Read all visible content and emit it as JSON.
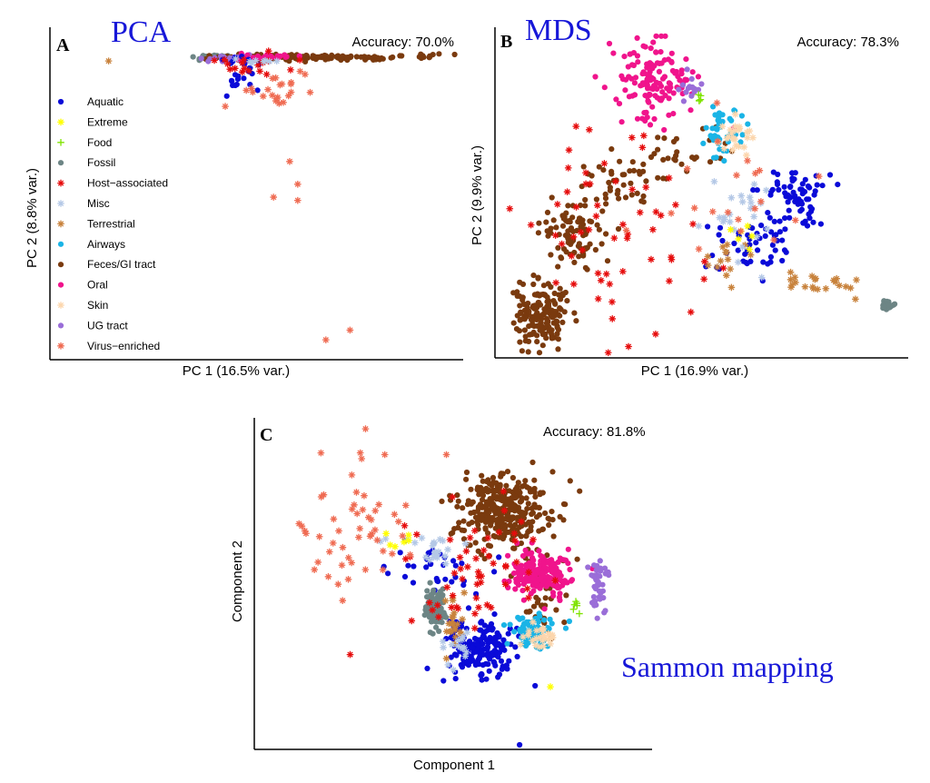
{
  "figure": {
    "category_colors": {
      "Aquatic": "#0a0ad8",
      "Extreme": "#ffff00",
      "Food": "#7fe300",
      "Fossil": "#6d8585",
      "Host-associated": "#e60c0c",
      "Misc": "#b4c8e6",
      "Terrestrial": "#c8823c",
      "Airways": "#1ab4e6",
      "Feces/GI tract": "#7a3a0e",
      "Oral": "#f0148c",
      "Skin": "#fcd6ad",
      "UG tract": "#9a6ed8",
      "Virus-enriched": "#ef6b52"
    },
    "title_color": "#1717d8"
  },
  "chart_data": [
    {
      "type": "scatter",
      "panel_letter": "A",
      "method_title": "PCA",
      "accuracy_text": "Accuracy: 70.0%",
      "xlabel": "PC 1 (16.5% var.)",
      "ylabel": "PC 2 (8.8% var.)",
      "xlim": [
        0,
        1
      ],
      "ylim": [
        0,
        1
      ],
      "legend": {
        "position": "left",
        "entries": [
          "Aquatic",
          "Extreme",
          "Food",
          "Fossil",
          "Host−associated",
          "Misc",
          "Terrestrial",
          "Airways",
          "Feces/GI tract",
          "Oral",
          "Skin",
          "UG tract",
          "Virus−enriched"
        ],
        "categories": [
          "Aquatic",
          "Extreme",
          "Food",
          "Fossil",
          "Host-associated",
          "Misc",
          "Terrestrial",
          "Airways",
          "Feces/GI tract",
          "Oral",
          "Skin",
          "UG tract",
          "Virus-enriched"
        ]
      },
      "series": [
        {
          "category": "Fossil",
          "clusters": [
            {
              "cx": 0.38,
              "cy": 0.92,
              "sx": 0.02,
              "sy": 0.004,
              "n": 30
            }
          ]
        },
        {
          "category": "Feces/GI tract",
          "clusters": [
            {
              "cx": 0.62,
              "cy": 0.92,
              "sx": 0.13,
              "sy": 0.005,
              "n": 120
            },
            {
              "cx": 0.92,
              "cy": 0.925,
              "sx": 0.02,
              "sy": 0.004,
              "n": 10
            }
          ],
          "points": [
            [
              0.99,
              0.93
            ]
          ]
        },
        {
          "category": "UG tract",
          "clusters": [
            {
              "cx": 0.43,
              "cy": 0.92,
              "sx": 0.03,
              "sy": 0.005,
              "n": 25
            }
          ]
        },
        {
          "category": "Oral",
          "clusters": [
            {
              "cx": 0.52,
              "cy": 0.92,
              "sx": 0.04,
              "sy": 0.005,
              "n": 30
            }
          ]
        },
        {
          "category": "Aquatic",
          "clusters": [
            {
              "cx": 0.46,
              "cy": 0.87,
              "sx": 0.03,
              "sy": 0.03,
              "n": 25
            }
          ]
        },
        {
          "category": "Host-associated",
          "clusters": [
            {
              "cx": 0.48,
              "cy": 0.9,
              "sx": 0.05,
              "sy": 0.02,
              "n": 18
            }
          ]
        },
        {
          "category": "Virus-enriched",
          "clusters": [
            {
              "cx": 0.56,
              "cy": 0.83,
              "sx": 0.05,
              "sy": 0.03,
              "n": 22
            }
          ],
          "points": [
            [
              0.42,
              0.77
            ],
            [
              0.58,
              0.6
            ],
            [
              0.6,
              0.53
            ],
            [
              0.54,
              0.49
            ],
            [
              0.6,
              0.48
            ],
            [
              0.67,
              0.05
            ],
            [
              0.73,
              0.08
            ]
          ]
        },
        {
          "category": "Terrestrial",
          "clusters": [],
          "points": [
            [
              0.13,
              0.91
            ]
          ]
        },
        {
          "category": "Misc",
          "clusters": [
            {
              "cx": 0.5,
              "cy": 0.91,
              "sx": 0.03,
              "sy": 0.006,
              "n": 8
            }
          ]
        }
      ]
    },
    {
      "type": "scatter",
      "panel_letter": "B",
      "method_title": "MDS",
      "accuracy_text": "Accuracy: 78.3%",
      "xlabel": "PC 1 (16.9% var.)",
      "ylabel": "PC 2 (9.9% var.)",
      "xlim": [
        0,
        1
      ],
      "ylim": [
        0,
        1
      ],
      "series": [
        {
          "category": "Feces/GI tract",
          "clusters": [
            {
              "cx": 0.1,
              "cy": 0.12,
              "sx": 0.03,
              "sy": 0.05,
              "n": 170
            },
            {
              "cx": 0.18,
              "cy": 0.38,
              "sx": 0.035,
              "sy": 0.05,
              "n": 90
            },
            {
              "cx": 0.3,
              "cy": 0.55,
              "sx": 0.05,
              "sy": 0.04,
              "n": 40
            },
            {
              "cx": 0.45,
              "cy": 0.62,
              "sx": 0.06,
              "sy": 0.05,
              "n": 30
            }
          ]
        },
        {
          "category": "Oral",
          "clusters": [
            {
              "cx": 0.38,
              "cy": 0.85,
              "sx": 0.05,
              "sy": 0.06,
              "n": 140
            }
          ]
        },
        {
          "category": "Aquatic",
          "clusters": [
            {
              "cx": 0.73,
              "cy": 0.5,
              "sx": 0.04,
              "sy": 0.04,
              "n": 70
            },
            {
              "cx": 0.62,
              "cy": 0.35,
              "sx": 0.06,
              "sy": 0.05,
              "n": 50
            }
          ]
        },
        {
          "category": "Airways",
          "clusters": [
            {
              "cx": 0.55,
              "cy": 0.7,
              "sx": 0.025,
              "sy": 0.04,
              "n": 45
            }
          ]
        },
        {
          "category": "Skin",
          "clusters": [
            {
              "cx": 0.58,
              "cy": 0.68,
              "sx": 0.025,
              "sy": 0.035,
              "n": 25
            }
          ]
        },
        {
          "category": "UG tract",
          "clusters": [
            {
              "cx": 0.47,
              "cy": 0.82,
              "sx": 0.012,
              "sy": 0.03,
              "n": 14
            }
          ]
        },
        {
          "category": "Food",
          "clusters": [
            {
              "cx": 0.49,
              "cy": 0.8,
              "sx": 0.006,
              "sy": 0.01,
              "n": 5
            }
          ]
        },
        {
          "category": "Terrestrial",
          "clusters": [
            {
              "cx": 0.8,
              "cy": 0.22,
              "sx": 0.05,
              "sy": 0.015,
              "n": 22
            },
            {
              "cx": 0.55,
              "cy": 0.32,
              "sx": 0.03,
              "sy": 0.05,
              "n": 14
            }
          ]
        },
        {
          "category": "Host-associated",
          "clusters": [
            {
              "cx": 0.3,
              "cy": 0.38,
              "sx": 0.12,
              "sy": 0.18,
              "n": 60
            }
          ]
        },
        {
          "category": "Misc",
          "clusters": [
            {
              "cx": 0.58,
              "cy": 0.42,
              "sx": 0.05,
              "sy": 0.08,
              "n": 25
            }
          ]
        },
        {
          "category": "Extreme",
          "clusters": [
            {
              "cx": 0.6,
              "cy": 0.38,
              "sx": 0.02,
              "sy": 0.02,
              "n": 6
            }
          ]
        },
        {
          "category": "Virus-enriched",
          "clusters": [
            {
              "cx": 0.55,
              "cy": 0.45,
              "sx": 0.08,
              "sy": 0.12,
              "n": 20
            }
          ]
        },
        {
          "category": "Fossil",
          "clusters": [
            {
              "cx": 0.96,
              "cy": 0.15,
              "sx": 0.008,
              "sy": 0.008,
              "n": 25
            }
          ]
        }
      ]
    },
    {
      "type": "scatter",
      "panel_letter": "C",
      "method_title": "Sammon mapping",
      "accuracy_text": "Accuracy: 81.8%",
      "xlabel": "Component 1",
      "ylabel": "Component 2",
      "xlim": [
        0,
        1
      ],
      "ylim": [
        0,
        1
      ],
      "series": [
        {
          "category": "Feces/GI tract",
          "clusters": [
            {
              "cx": 0.63,
              "cy": 0.72,
              "sx": 0.06,
              "sy": 0.06,
              "n": 320
            },
            {
              "cx": 0.74,
              "cy": 0.45,
              "sx": 0.04,
              "sy": 0.06,
              "n": 40
            }
          ]
        },
        {
          "category": "Oral",
          "clusters": [
            {
              "cx": 0.72,
              "cy": 0.53,
              "sx": 0.04,
              "sy": 0.035,
              "n": 200
            }
          ]
        },
        {
          "category": "Aquatic",
          "clusters": [
            {
              "cx": 0.57,
              "cy": 0.3,
              "sx": 0.045,
              "sy": 0.045,
              "n": 180
            },
            {
              "cx": 0.44,
              "cy": 0.55,
              "sx": 0.06,
              "sy": 0.05,
              "n": 35
            }
          ],
          "points": [
            [
              0.67,
              0.0
            ]
          ]
        },
        {
          "category": "Fossil",
          "clusters": [
            {
              "cx": 0.45,
              "cy": 0.42,
              "sx": 0.012,
              "sy": 0.03,
              "n": 100
            }
          ]
        },
        {
          "category": "Airways",
          "clusters": [
            {
              "cx": 0.7,
              "cy": 0.35,
              "sx": 0.03,
              "sy": 0.025,
              "n": 70
            }
          ]
        },
        {
          "category": "Skin",
          "clusters": [
            {
              "cx": 0.72,
              "cy": 0.33,
              "sx": 0.025,
              "sy": 0.02,
              "n": 25
            }
          ]
        },
        {
          "category": "UG tract",
          "clusters": [
            {
              "cx": 0.87,
              "cy": 0.5,
              "sx": 0.012,
              "sy": 0.05,
              "n": 40
            }
          ]
        },
        {
          "category": "Food",
          "clusters": [
            {
              "cx": 0.82,
              "cy": 0.43,
              "sx": 0.008,
              "sy": 0.02,
              "n": 6
            }
          ]
        },
        {
          "category": "Terrestrial",
          "clusters": [
            {
              "cx": 0.5,
              "cy": 0.38,
              "sx": 0.015,
              "sy": 0.05,
              "n": 22
            }
          ]
        },
        {
          "category": "Misc",
          "clusters": [
            {
              "cx": 0.44,
              "cy": 0.62,
              "sx": 0.04,
              "sy": 0.03,
              "n": 22
            },
            {
              "cx": 0.5,
              "cy": 0.3,
              "sx": 0.03,
              "sy": 0.03,
              "n": 15
            }
          ]
        },
        {
          "category": "Extreme",
          "clusters": [
            {
              "cx": 0.36,
              "cy": 0.63,
              "sx": 0.03,
              "sy": 0.02,
              "n": 6
            }
          ],
          "points": [
            [
              0.75,
              0.18
            ]
          ]
        },
        {
          "category": "Host-associated",
          "clusters": [
            {
              "cx": 0.55,
              "cy": 0.55,
              "sx": 0.08,
              "sy": 0.12,
              "n": 55
            }
          ],
          "points": [
            [
              0.23,
              0.28
            ]
          ]
        },
        {
          "category": "Virus-enriched",
          "clusters": [
            {
              "cx": 0.22,
              "cy": 0.72,
              "sx": 0.08,
              "sy": 0.12,
              "n": 50
            }
          ],
          "points": [
            [
              0.27,
              0.98
            ],
            [
              0.32,
              0.9
            ],
            [
              0.48,
              0.9
            ]
          ]
        }
      ]
    }
  ]
}
